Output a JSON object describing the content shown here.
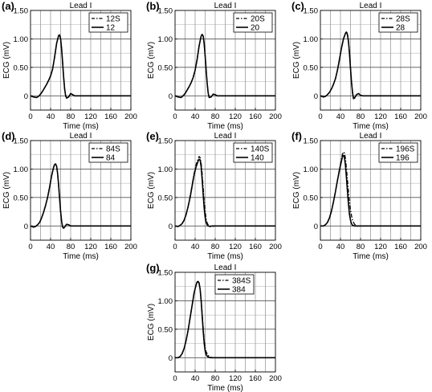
{
  "figure": {
    "x_ticks": [
      "0",
      "40",
      "80",
      "120",
      "160",
      "200"
    ],
    "y_ticks": [
      "0",
      "0.50",
      "1.00",
      "1.50"
    ]
  },
  "chart_data": [
    {
      "type": "line",
      "panel_label": "(a)",
      "title": "Lead I",
      "xlabel": "Time (ms)",
      "ylabel": "ECG (mV)",
      "xlim": [
        0,
        200
      ],
      "ylim": [
        -0.25,
        1.5
      ],
      "grid": true,
      "legend_position": "top-right",
      "series": [
        {
          "name": "12S",
          "style": "dash-dot",
          "x": [
            0,
            6,
            12,
            16,
            20,
            24,
            28,
            32,
            36,
            40,
            44,
            48,
            52,
            56,
            58,
            60,
            62,
            64,
            66,
            68,
            70,
            72,
            76,
            80,
            84,
            88,
            100,
            120,
            160,
            200
          ],
          "y": [
            0,
            -0.02,
            -0.03,
            -0.01,
            0.03,
            0.08,
            0.14,
            0.2,
            0.27,
            0.35,
            0.47,
            0.68,
            0.92,
            1.06,
            1.07,
            1.0,
            0.82,
            0.58,
            0.33,
            0.12,
            0.0,
            -0.04,
            -0.02,
            0.04,
            0.02,
            0.0,
            0,
            0,
            0,
            0
          ]
        },
        {
          "name": "12",
          "style": "solid",
          "x": [
            0,
            6,
            12,
            16,
            20,
            24,
            28,
            32,
            36,
            40,
            44,
            48,
            52,
            56,
            58,
            60,
            62,
            64,
            66,
            68,
            70,
            72,
            76,
            80,
            84,
            88,
            100,
            120,
            160,
            200
          ],
          "y": [
            0,
            -0.02,
            -0.03,
            -0.01,
            0.03,
            0.08,
            0.14,
            0.2,
            0.27,
            0.35,
            0.47,
            0.68,
            0.92,
            1.06,
            1.07,
            1.0,
            0.82,
            0.58,
            0.33,
            0.12,
            0.0,
            -0.04,
            -0.02,
            0.04,
            0.02,
            0.0,
            0,
            0,
            0,
            0
          ]
        }
      ]
    },
    {
      "type": "line",
      "panel_label": "(b)",
      "title": "Lead I",
      "xlabel": "Time (ms)",
      "ylabel": "ECG (mV)",
      "xlim": [
        0,
        200
      ],
      "ylim": [
        -0.25,
        1.5
      ],
      "grid": true,
      "legend_position": "top-right",
      "series": [
        {
          "name": "20S",
          "style": "dash-dot",
          "x": [
            0,
            6,
            12,
            16,
            20,
            24,
            28,
            32,
            36,
            40,
            44,
            48,
            52,
            54,
            56,
            58,
            60,
            62,
            64,
            66,
            68,
            72,
            76,
            80,
            84,
            100,
            120,
            160,
            200
          ],
          "y": [
            0,
            -0.02,
            -0.03,
            0.0,
            0.04,
            0.1,
            0.16,
            0.23,
            0.32,
            0.45,
            0.64,
            0.88,
            1.05,
            1.08,
            1.05,
            0.92,
            0.7,
            0.45,
            0.22,
            0.05,
            -0.03,
            -0.02,
            0.03,
            0.02,
            0.0,
            0,
            0,
            0,
            0
          ]
        },
        {
          "name": "20",
          "style": "solid",
          "x": [
            0,
            6,
            12,
            16,
            20,
            24,
            28,
            32,
            36,
            40,
            44,
            48,
            52,
            54,
            56,
            58,
            60,
            62,
            64,
            66,
            68,
            72,
            76,
            80,
            84,
            100,
            120,
            160,
            200
          ],
          "y": [
            0,
            -0.02,
            -0.03,
            0.0,
            0.04,
            0.1,
            0.16,
            0.23,
            0.32,
            0.45,
            0.64,
            0.88,
            1.05,
            1.08,
            1.05,
            0.92,
            0.7,
            0.45,
            0.22,
            0.05,
            -0.03,
            -0.02,
            0.03,
            0.02,
            0.0,
            0,
            0,
            0,
            0
          ]
        }
      ]
    },
    {
      "type": "line",
      "panel_label": "(c)",
      "title": "Lead I",
      "xlabel": "Time (ms)",
      "ylabel": "ECG (mV)",
      "xlim": [
        0,
        200
      ],
      "ylim": [
        -0.25,
        1.5
      ],
      "grid": true,
      "legend_position": "top-right",
      "series": [
        {
          "name": "28S",
          "style": "dash-dot",
          "x": [
            0,
            6,
            10,
            14,
            18,
            22,
            26,
            30,
            34,
            38,
            42,
            46,
            50,
            52,
            54,
            56,
            58,
            60,
            62,
            64,
            66,
            68,
            72,
            76,
            80,
            84,
            100,
            120,
            160,
            200
          ],
          "y": [
            0,
            -0.02,
            -0.01,
            0.02,
            0.06,
            0.12,
            0.2,
            0.3,
            0.45,
            0.64,
            0.84,
            1.0,
            1.1,
            1.13,
            1.08,
            0.96,
            0.76,
            0.5,
            0.25,
            0.06,
            -0.05,
            -0.04,
            0.02,
            0.04,
            0.01,
            0.0,
            0,
            0,
            0,
            0
          ]
        },
        {
          "name": "28",
          "style": "solid",
          "x": [
            0,
            6,
            10,
            14,
            18,
            22,
            26,
            30,
            34,
            38,
            42,
            46,
            50,
            52,
            54,
            56,
            58,
            60,
            62,
            64,
            66,
            68,
            72,
            76,
            80,
            84,
            100,
            120,
            160,
            200
          ],
          "y": [
            0,
            -0.02,
            -0.01,
            0.02,
            0.06,
            0.12,
            0.2,
            0.3,
            0.45,
            0.64,
            0.84,
            1.0,
            1.1,
            1.12,
            1.07,
            0.95,
            0.74,
            0.48,
            0.24,
            0.06,
            -0.05,
            -0.04,
            0.02,
            0.04,
            0.01,
            0.0,
            0,
            0,
            0,
            0
          ]
        }
      ]
    },
    {
      "type": "line",
      "panel_label": "(d)",
      "title": "Lead I",
      "xlabel": "Time (ms)",
      "ylabel": "ECG (mV)",
      "xlim": [
        0,
        200
      ],
      "ylim": [
        -0.25,
        1.5
      ],
      "grid": true,
      "legend_position": "top-right",
      "series": [
        {
          "name": "84S",
          "style": "dash-dot",
          "x": [
            0,
            6,
            10,
            14,
            18,
            22,
            26,
            30,
            34,
            38,
            42,
            46,
            48,
            50,
            52,
            54,
            56,
            58,
            60,
            62,
            64,
            66,
            68,
            72,
            76,
            80,
            84,
            100,
            120,
            160,
            200
          ],
          "y": [
            0,
            -0.02,
            -0.01,
            0.02,
            0.06,
            0.14,
            0.24,
            0.36,
            0.5,
            0.68,
            0.88,
            1.03,
            1.08,
            1.09,
            1.05,
            0.92,
            0.72,
            0.48,
            0.25,
            0.08,
            -0.02,
            -0.04,
            -0.02,
            0.03,
            0.02,
            0.0,
            0,
            0,
            0,
            0,
            0
          ]
        },
        {
          "name": "84",
          "style": "solid",
          "x": [
            0,
            6,
            10,
            14,
            18,
            22,
            26,
            30,
            34,
            38,
            42,
            46,
            48,
            50,
            52,
            54,
            56,
            58,
            60,
            62,
            64,
            66,
            68,
            72,
            76,
            80,
            84,
            100,
            120,
            160,
            200
          ],
          "y": [
            0,
            -0.02,
            -0.01,
            0.02,
            0.06,
            0.14,
            0.24,
            0.36,
            0.5,
            0.68,
            0.88,
            1.03,
            1.08,
            1.09,
            1.05,
            0.92,
            0.72,
            0.48,
            0.25,
            0.08,
            -0.02,
            -0.04,
            -0.02,
            0.03,
            0.02,
            0.0,
            0,
            0,
            0,
            0,
            0
          ]
        }
      ]
    },
    {
      "type": "line",
      "panel_label": "(e)",
      "title": "Lead I",
      "xlabel": "Time (ms)",
      "ylabel": "ECG (mV)",
      "xlim": [
        0,
        200
      ],
      "ylim": [
        -0.25,
        1.5
      ],
      "grid": true,
      "legend_position": "top-right",
      "series": [
        {
          "name": "140S",
          "style": "dash-dot",
          "x": [
            0,
            6,
            10,
            14,
            18,
            22,
            26,
            30,
            34,
            38,
            42,
            46,
            48,
            50,
            52,
            54,
            56,
            58,
            60,
            62,
            64,
            66,
            70,
            74,
            80,
            90,
            100,
            120,
            160,
            200
          ],
          "y": [
            0,
            -0.01,
            0.01,
            0.04,
            0.1,
            0.2,
            0.34,
            0.52,
            0.72,
            0.92,
            1.08,
            1.18,
            1.22,
            1.2,
            1.1,
            0.92,
            0.68,
            0.45,
            0.26,
            0.12,
            0.05,
            0.02,
            0.0,
            -0.01,
            0.0,
            0,
            0,
            0,
            0,
            0
          ]
        },
        {
          "name": "140",
          "style": "solid",
          "x": [
            0,
            6,
            10,
            14,
            18,
            22,
            26,
            30,
            34,
            38,
            42,
            46,
            48,
            50,
            52,
            54,
            56,
            58,
            60,
            62,
            64,
            66,
            70,
            74,
            80,
            90,
            100,
            120,
            160,
            200
          ],
          "y": [
            0,
            -0.01,
            0.01,
            0.04,
            0.1,
            0.2,
            0.34,
            0.5,
            0.7,
            0.9,
            1.04,
            1.14,
            1.17,
            1.16,
            1.04,
            0.82,
            0.56,
            0.32,
            0.15,
            0.06,
            0.02,
            0.0,
            -0.01,
            0.0,
            0,
            0,
            0,
            0,
            0,
            0
          ]
        }
      ]
    },
    {
      "type": "line",
      "panel_label": "(f)",
      "title": "Lead I",
      "xlabel": "Time (ms)",
      "ylabel": "ECG (mV)",
      "xlim": [
        0,
        200
      ],
      "ylim": [
        -0.25,
        1.5
      ],
      "grid": true,
      "legend_position": "top-right",
      "series": [
        {
          "name": "196S",
          "style": "dash-dot",
          "x": [
            0,
            6,
            10,
            14,
            18,
            22,
            26,
            30,
            34,
            38,
            42,
            44,
            46,
            48,
            50,
            52,
            54,
            56,
            58,
            60,
            62,
            64,
            68,
            72,
            76,
            80,
            90,
            100,
            120,
            160,
            200
          ],
          "y": [
            0,
            0.0,
            0.02,
            0.06,
            0.14,
            0.26,
            0.42,
            0.6,
            0.8,
            1.0,
            1.18,
            1.26,
            1.3,
            1.28,
            1.18,
            1.0,
            0.8,
            0.6,
            0.42,
            0.28,
            0.18,
            0.1,
            0.03,
            0.0,
            -0.01,
            0.0,
            0,
            0,
            0,
            0,
            0
          ]
        },
        {
          "name": "196",
          "style": "solid",
          "x": [
            0,
            6,
            10,
            14,
            18,
            22,
            26,
            30,
            34,
            38,
            42,
            44,
            46,
            48,
            50,
            52,
            54,
            56,
            58,
            60,
            62,
            64,
            68,
            72,
            76,
            80,
            90,
            100,
            120,
            160,
            200
          ],
          "y": [
            0,
            0.0,
            0.02,
            0.06,
            0.14,
            0.26,
            0.42,
            0.6,
            0.8,
            0.98,
            1.14,
            1.22,
            1.24,
            1.2,
            1.06,
            0.84,
            0.6,
            0.38,
            0.2,
            0.1,
            0.04,
            0.01,
            0.0,
            0.0,
            0.0,
            0,
            0,
            0,
            0,
            0,
            0
          ]
        }
      ]
    },
    {
      "type": "line",
      "panel_label": "(g)",
      "title": "Lead I",
      "xlabel": "Time (ms)",
      "ylabel": "ECG (mV)",
      "xlim": [
        0,
        200
      ],
      "ylim": [
        -0.25,
        1.5
      ],
      "grid": true,
      "legend_position": "top-left",
      "series": [
        {
          "name": "384S",
          "style": "dash-dot",
          "x": [
            0,
            6,
            10,
            14,
            18,
            22,
            26,
            30,
            34,
            38,
            42,
            44,
            46,
            48,
            50,
            52,
            54,
            56,
            58,
            60,
            62,
            66,
            70,
            76,
            84,
            100,
            120,
            160,
            200
          ],
          "y": [
            0,
            0.0,
            0.02,
            0.07,
            0.16,
            0.3,
            0.48,
            0.7,
            0.92,
            1.14,
            1.28,
            1.32,
            1.33,
            1.3,
            1.2,
            1.02,
            0.78,
            0.54,
            0.32,
            0.18,
            0.1,
            0.04,
            0.01,
            0.0,
            0.0,
            0,
            0,
            0,
            0
          ]
        },
        {
          "name": "384",
          "style": "solid",
          "x": [
            0,
            6,
            10,
            14,
            18,
            22,
            26,
            30,
            34,
            38,
            42,
            44,
            46,
            48,
            50,
            52,
            54,
            56,
            58,
            60,
            62,
            66,
            70,
            76,
            84,
            100,
            120,
            160,
            200
          ],
          "y": [
            0,
            0.0,
            0.02,
            0.07,
            0.16,
            0.3,
            0.48,
            0.7,
            0.92,
            1.14,
            1.28,
            1.33,
            1.34,
            1.31,
            1.2,
            1.0,
            0.74,
            0.48,
            0.26,
            0.12,
            0.05,
            0.01,
            0.0,
            0.0,
            0.0,
            0,
            0,
            0,
            0
          ]
        }
      ]
    }
  ]
}
